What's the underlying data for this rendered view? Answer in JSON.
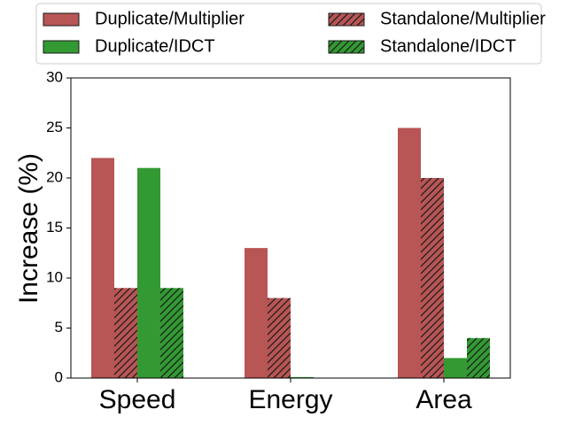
{
  "chart_data": {
    "type": "bar",
    "categories": [
      "Speed",
      "Energy",
      "Area"
    ],
    "ylabel": "Increase (%)",
    "ylim": [
      0,
      30
    ],
    "yticks": [
      0,
      5,
      10,
      15,
      20,
      25,
      30
    ],
    "grid": false,
    "legend": {
      "placement": "top",
      "columns": 2
    },
    "series": [
      {
        "name": "Duplicate/Multiplier",
        "values": [
          22,
          13,
          25
        ],
        "color": "#b85555",
        "hatch": false
      },
      {
        "name": "Standalone/Multiplier",
        "values": [
          9,
          8,
          20
        ],
        "color": "#b85555",
        "hatch": true
      },
      {
        "name": "Duplicate/IDCT",
        "values": [
          21,
          0.1,
          2
        ],
        "color": "#339933",
        "hatch": false
      },
      {
        "name": "Standalone/IDCT",
        "values": [
          9,
          0,
          4
        ],
        "color": "#339933",
        "hatch": true
      }
    ]
  }
}
